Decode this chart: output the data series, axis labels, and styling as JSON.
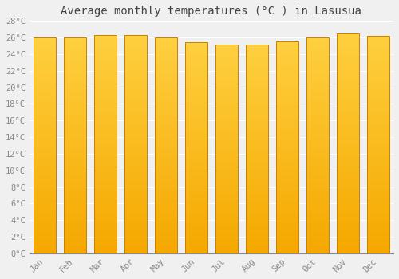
{
  "title": "Average monthly temperatures (°C ) in Lasusua",
  "months": [
    "Jan",
    "Feb",
    "Mar",
    "Apr",
    "May",
    "Jun",
    "Jul",
    "Aug",
    "Sep",
    "Oct",
    "Nov",
    "Dec"
  ],
  "values": [
    26.0,
    26.0,
    26.3,
    26.3,
    26.0,
    25.4,
    25.1,
    25.1,
    25.5,
    26.0,
    26.5,
    26.2
  ],
  "ylim": [
    0,
    28
  ],
  "yticks": [
    0,
    2,
    4,
    6,
    8,
    10,
    12,
    14,
    16,
    18,
    20,
    22,
    24,
    26,
    28
  ],
  "bar_color_bottom": "#F5A800",
  "bar_color_top": "#FFD040",
  "bar_edge_color": "#C88000",
  "bg_color": "#f0f0f0",
  "grid_color": "#ffffff",
  "title_fontsize": 10,
  "tick_fontsize": 7.5,
  "tick_color": "#888888",
  "title_color": "#444444",
  "title_font": "monospace",
  "bar_width": 0.75,
  "n_grad": 60
}
